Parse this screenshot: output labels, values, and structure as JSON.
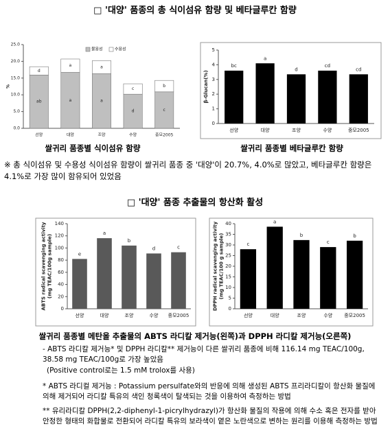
{
  "document": {
    "section1_title": "□ '대양' 품종의 총 식이섬유 함량 및 베타글루칸 함량",
    "caption1_left": "쌀귀리 품종별 식이섬유 함량",
    "caption1_right": "쌀귀리 품종별 베타글루칸 함량",
    "note1": "※ 총 식이섬유 및 수용성 식이섬유 함량이 쌀귀리 품종 중 '대양'이 20.7%, 4.0%로 많았고, 베타글루칸 함량은 4.1%로 가장 많이 함유되어 있었음",
    "section2_title": "□ '대양' 품종 추출물의 항산화 활성",
    "caption2": "쌀귀리 품종별 메탄올 추출물의 ABTS 라디칼 제거능(왼쪽)과 DPPH 라디칼 제거능(오른쪽)",
    "bullet1": "- ABTS 라디칼 제거능* 및 DPPH 라디칼** 제거능이 다른 쌀귀리 품종에 비해 116.14 mg TEAC/100g, 38.58 mg TEAC/100g로 가장 높았음",
    "bullet1_sub": "(Positive control로는 1.5 mM trolox를 사용)",
    "footnote1": "* ABTS 라디컬 제거능 : Potassium persulfate와의 반응에 의해 생성된 ABTS 프리라디칼이 항산화 물질에 의해 제거되어 라디칼 특유의 색인 청록색이 탈색되는 것을 이용하여 측정하는 방법",
    "footnote2": "** 유리라디칼 DPPH(2,2-diphenyl-1-picrylhydrazyl)가 항산화 물질의 작용에 의해 수소 혹은 전자를 받아 안정한 형태의 화합물로 전환되어 라디칼 특유의 보라색이 옅은 노란색으로 변하는 원리를 이용해 측정하는 방법"
  },
  "chart_data": [
    {
      "type": "stacked-bar",
      "ylabel": [
        "%"
      ],
      "categories": [
        "선양",
        "대양",
        "조양",
        "수양",
        "중모2005"
      ],
      "series": [
        {
          "name": "불용성",
          "color": "#bfbfbf",
          "values": [
            15.9,
            16.7,
            16.3,
            10.2,
            10.9
          ],
          "letters": [
            "ab",
            "a",
            "a",
            "d",
            "c"
          ]
        },
        {
          "name": "수용성",
          "color": "#ffffff",
          "values": [
            2.5,
            4.0,
            3.9,
            3.1,
            3.4
          ],
          "letters": [
            "d",
            "a",
            "a",
            "c",
            "b"
          ]
        }
      ],
      "ylim": [
        0,
        25
      ],
      "yticks": [
        {
          "value": 0,
          "label": "0.0"
        },
        {
          "value": 5,
          "label": "5.0"
        },
        {
          "value": 10,
          "label": "10.0"
        },
        {
          "value": 15,
          "label": "15.0"
        },
        {
          "value": 20,
          "label": "20.0"
        },
        {
          "value": 25,
          "label": "25.0"
        }
      ],
      "grid": false
    },
    {
      "type": "bar",
      "ylabel": [
        "β-Glucan(%)"
      ],
      "categories": [
        "선양",
        "대양",
        "조양",
        "수양",
        "중모2005"
      ],
      "values": [
        3.6,
        4.1,
        3.35,
        3.6,
        3.35
      ],
      "letters": [
        "bc",
        "a",
        "d",
        "cd",
        "cd"
      ],
      "color": "#000000",
      "ylim": [
        0,
        5
      ],
      "yticks": [
        0,
        1,
        2,
        3,
        4,
        5
      ],
      "grid": false
    },
    {
      "type": "bar",
      "ylabel": [
        "ABTS radical scavenging activity",
        "(mg TEAC/100g sample)"
      ],
      "categories": [
        "선양",
        "대양",
        "조양",
        "수양",
        "중모2005"
      ],
      "values": [
        82,
        116.14,
        104,
        91,
        93
      ],
      "letters": [
        "e",
        "a",
        "b",
        "d",
        "c"
      ],
      "color": "#595959",
      "ylim": [
        0,
        140
      ],
      "yticks": [
        0,
        20,
        40,
        60,
        80,
        100,
        120,
        140
      ],
      "grid": false
    },
    {
      "type": "bar",
      "ylabel": [
        "DPPH radical scavenging activity",
        "(mg TEAC/100 g sample)"
      ],
      "categories": [
        "선양",
        "대양",
        "조양",
        "수양",
        "중모2005"
      ],
      "values": [
        28,
        38.58,
        32.3,
        29,
        32
      ],
      "letters": [
        "c",
        "a",
        "b",
        "c",
        "b"
      ],
      "color": "#000000",
      "ylim": [
        0,
        40
      ],
      "yticks": [
        0,
        5,
        10,
        15,
        20,
        25,
        30,
        35,
        40
      ],
      "grid": false
    }
  ]
}
